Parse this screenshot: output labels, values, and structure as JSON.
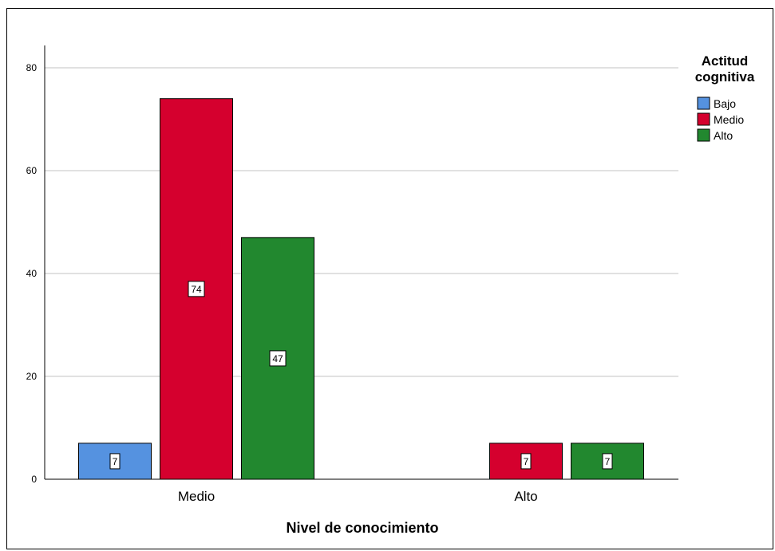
{
  "chart_data": {
    "type": "bar",
    "xlabel": "Nivel de conocimiento",
    "ylabel": "",
    "ylim": [
      0,
      84
    ],
    "yticks": [
      0,
      20,
      40,
      60,
      80
    ],
    "grid": true,
    "legend_position": "top-right",
    "legend_title": "Actitud cognitiva",
    "categories": [
      "Medio",
      "Alto"
    ],
    "series": [
      {
        "name": "Bajo",
        "color": "#5592e0",
        "values": [
          7,
          null
        ]
      },
      {
        "name": "Medio",
        "color": "#d5002e",
        "values": [
          74,
          7
        ]
      },
      {
        "name": "Alto",
        "color": "#22882f",
        "values": [
          47,
          7
        ]
      }
    ]
  }
}
